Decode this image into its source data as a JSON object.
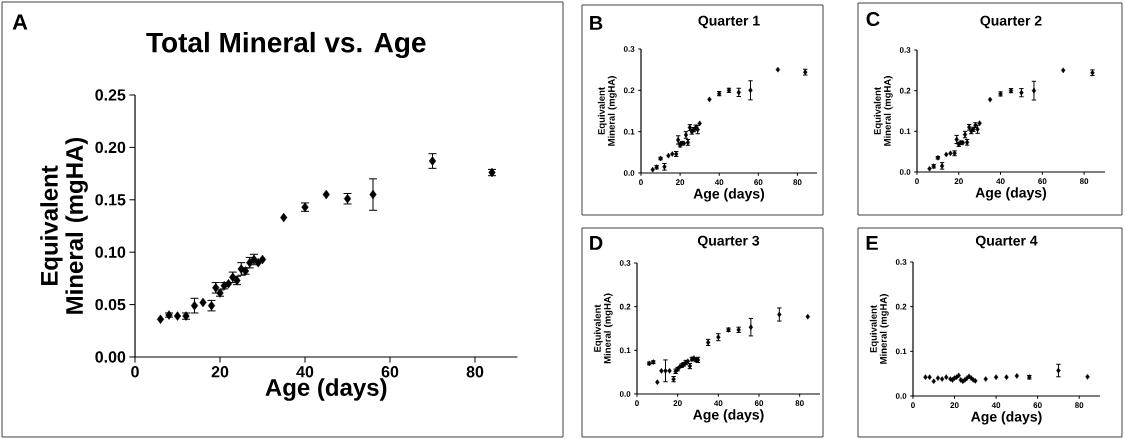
{
  "chart_data": [
    {
      "type": "scatter",
      "title": "Total Mineral vs.  Age",
      "xlabel": "Age (days)",
      "ylabel": "Equivalent Mineral (mgHA)",
      "annotations": [
        "A"
      ],
      "marker": "diamond",
      "color": "#000000",
      "x": [
        6,
        8,
        10,
        12,
        14,
        16,
        18,
        19,
        20,
        21,
        22,
        23,
        24,
        25,
        26,
        27,
        28,
        29,
        30,
        35,
        40,
        45,
        50,
        56,
        70,
        84
      ],
      "values": [
        0.036,
        0.04,
        0.039,
        0.039,
        0.049,
        0.052,
        0.049,
        0.066,
        0.061,
        0.068,
        0.07,
        0.076,
        0.073,
        0.084,
        0.082,
        0.09,
        0.093,
        0.09,
        0.093,
        0.133,
        0.143,
        0.155,
        0.151,
        0.155,
        0.187,
        0.176
      ],
      "errors": [
        null,
        0.002,
        null,
        0.003,
        0.007,
        null,
        0.005,
        0.005,
        0.003,
        0.003,
        null,
        0.005,
        0.004,
        0.006,
        0.003,
        0.005,
        0.005,
        null,
        null,
        null,
        0.004,
        null,
        0.005,
        0.015,
        0.007,
        0.003
      ],
      "xlim": [
        0,
        90
      ],
      "xticks": [
        0,
        20,
        40,
        60,
        80
      ],
      "ylim": [
        0,
        0.25
      ],
      "yticks": [
        {
          "value": 0,
          "label": "0.00"
        },
        {
          "value": 0.05,
          "label": "0.05"
        },
        {
          "value": 0.1,
          "label": "0.10"
        },
        {
          "value": 0.15,
          "label": "0.15"
        },
        {
          "value": 0.2,
          "label": "0.20"
        },
        {
          "value": 0.25,
          "label": "0.25"
        }
      ]
    },
    {
      "type": "scatter",
      "title": "Quarter 1",
      "xlabel": "Age (days)",
      "ylabel": "Equivalent Mineral (mgHA)",
      "annotations": [
        "B"
      ],
      "marker": "diamond",
      "color": "#000000",
      "x": [
        6,
        8,
        10,
        12,
        14,
        16,
        18,
        19,
        20,
        21,
        22,
        23,
        24,
        25,
        26,
        27,
        28,
        29,
        30,
        35,
        40,
        45,
        50,
        56,
        70,
        84
      ],
      "values": [
        0.008,
        0.014,
        0.035,
        0.015,
        0.042,
        0.046,
        0.046,
        0.08,
        0.068,
        0.072,
        0.072,
        0.092,
        0.074,
        0.11,
        0.1,
        0.105,
        0.11,
        0.105,
        0.12,
        0.178,
        0.192,
        0.2,
        0.195,
        0.2,
        0.25,
        0.244
      ],
      "errors": [
        null,
        0.004,
        0.003,
        0.008,
        null,
        null,
        0.006,
        0.01,
        0.005,
        0.004,
        null,
        0.008,
        0.007,
        0.007,
        0.006,
        0.005,
        0.006,
        0.01,
        null,
        null,
        0.005,
        0.005,
        0.01,
        0.023,
        null,
        0.007
      ],
      "xlim": [
        0,
        90
      ],
      "xticks": [
        0,
        20,
        40,
        60,
        80
      ],
      "ylim": [
        0,
        0.3
      ],
      "yticks": [
        {
          "value": 0,
          "label": "0.0"
        },
        {
          "value": 0.1,
          "label": "0.1"
        },
        {
          "value": 0.2,
          "label": "0.2"
        },
        {
          "value": 0.3,
          "label": "0.3"
        }
      ]
    },
    {
      "type": "scatter",
      "title": "Quarter 2",
      "xlabel": "Age (days)",
      "ylabel": "Equivalent Mineral (mgHA)",
      "annotations": [
        "C"
      ],
      "marker": "diamond",
      "color": "#000000",
      "x": [
        6,
        8,
        10,
        12,
        14,
        16,
        18,
        19,
        20,
        21,
        22,
        23,
        24,
        25,
        26,
        27,
        28,
        29,
        30,
        35,
        40,
        45,
        50,
        56,
        70,
        84
      ],
      "values": [
        0.008,
        0.014,
        0.035,
        0.015,
        0.043,
        0.046,
        0.046,
        0.08,
        0.068,
        0.072,
        0.072,
        0.092,
        0.073,
        0.11,
        0.1,
        0.105,
        0.115,
        0.105,
        0.12,
        0.178,
        0.192,
        0.2,
        0.195,
        0.2,
        0.25,
        0.244
      ],
      "errors": [
        null,
        0.004,
        0.003,
        0.008,
        null,
        null,
        0.006,
        0.01,
        0.005,
        0.004,
        null,
        0.008,
        0.007,
        0.007,
        0.006,
        0.005,
        0.006,
        0.01,
        null,
        null,
        0.005,
        0.005,
        0.01,
        0.023,
        null,
        0.007
      ],
      "xlim": [
        0,
        90
      ],
      "xticks": [
        0,
        20,
        40,
        60,
        80
      ],
      "ylim": [
        0,
        0.3
      ],
      "yticks": [
        {
          "value": 0,
          "label": "0.0"
        },
        {
          "value": 0.1,
          "label": "0.1"
        },
        {
          "value": 0.2,
          "label": "0.2"
        },
        {
          "value": 0.3,
          "label": "0.3"
        }
      ]
    },
    {
      "type": "scatter",
      "title": "Quarter 3",
      "xlabel": "Age (days)",
      "ylabel": "Equivalent Mineral (mgHA)",
      "annotations": [
        "D"
      ],
      "marker": "diamond",
      "color": "#000000",
      "x": [
        6,
        8,
        10,
        12,
        14,
        16,
        18,
        19,
        20,
        21,
        22,
        23,
        24,
        25,
        26,
        27,
        28,
        29,
        30,
        35,
        40,
        45,
        50,
        56,
        70,
        84
      ],
      "values": [
        0.07,
        0.073,
        0.027,
        0.053,
        0.053,
        0.053,
        0.034,
        0.052,
        0.057,
        0.062,
        0.065,
        0.068,
        0.072,
        0.075,
        0.064,
        0.08,
        0.082,
        0.078,
        0.078,
        0.118,
        0.13,
        0.147,
        0.147,
        0.153,
        0.182,
        0.177
      ],
      "errors": [
        0.003,
        0.003,
        null,
        null,
        0.025,
        null,
        0.006,
        0.005,
        0.004,
        null,
        0.004,
        0.004,
        0.005,
        null,
        0.006,
        0.004,
        null,
        0.004,
        0.006,
        0.007,
        0.008,
        0.004,
        0.006,
        0.02,
        0.015,
        null
      ],
      "xlim": [
        0,
        90
      ],
      "xticks": [
        0,
        20,
        40,
        60,
        80
      ],
      "ylim": [
        0,
        0.3
      ],
      "yticks": [
        {
          "value": 0,
          "label": "0.0"
        },
        {
          "value": 0.1,
          "label": "0.1"
        },
        {
          "value": 0.2,
          "label": "0.2"
        },
        {
          "value": 0.3,
          "label": "0.3"
        }
      ]
    },
    {
      "type": "scatter",
      "title": "Quarter 4",
      "xlabel": "Age (days)",
      "ylabel": "Equivalent Mineral (mgHA)",
      "annotations": [
        "E"
      ],
      "marker": "diamond",
      "color": "#000000",
      "x": [
        6,
        8,
        10,
        12,
        14,
        16,
        18,
        19,
        20,
        21,
        22,
        23,
        24,
        25,
        26,
        27,
        28,
        29,
        30,
        35,
        40,
        45,
        50,
        56,
        70,
        84
      ],
      "values": [
        0.042,
        0.042,
        0.033,
        0.04,
        0.038,
        0.042,
        0.038,
        0.036,
        0.04,
        0.042,
        0.046,
        0.036,
        0.033,
        0.036,
        0.04,
        0.044,
        0.04,
        0.036,
        0.034,
        0.038,
        0.042,
        0.042,
        0.045,
        0.042,
        0.057,
        0.043
      ],
      "errors": [
        null,
        null,
        null,
        null,
        null,
        null,
        null,
        null,
        null,
        null,
        null,
        null,
        null,
        null,
        null,
        null,
        null,
        null,
        null,
        null,
        null,
        null,
        null,
        0.004,
        0.014,
        null
      ],
      "xlim": [
        0,
        90
      ],
      "xticks": [
        0,
        20,
        40,
        60,
        80
      ],
      "ylim": [
        0,
        0.3
      ],
      "yticks": [
        {
          "value": 0,
          "label": "0.0"
        },
        {
          "value": 0.1,
          "label": "0.1"
        },
        {
          "value": 0.2,
          "label": "0.2"
        },
        {
          "value": 0.3,
          "label": "0.3"
        }
      ]
    }
  ]
}
